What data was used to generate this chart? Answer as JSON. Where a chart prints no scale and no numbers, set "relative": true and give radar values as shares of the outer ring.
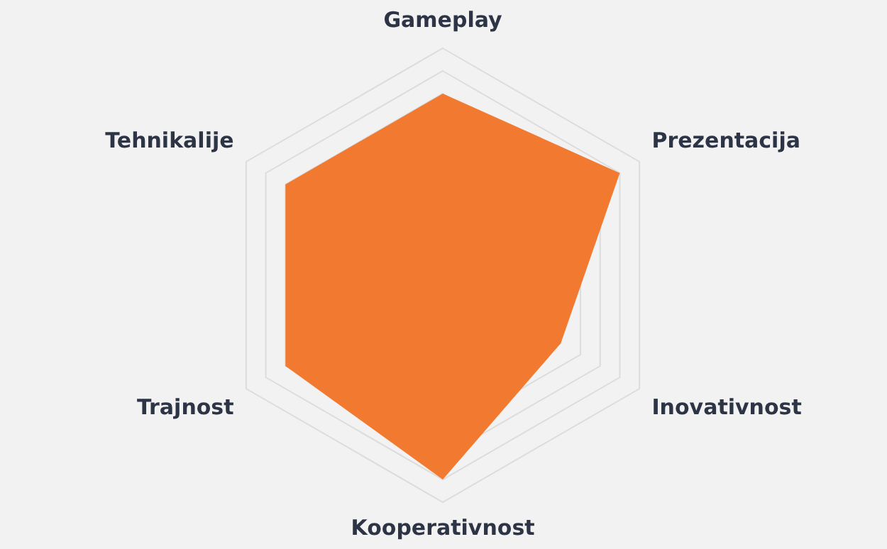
{
  "chart_data": {
    "type": "radar",
    "relative": true,
    "grid": true,
    "legend": false,
    "categories": [
      "Gameplay",
      "Prezentacija",
      "Inovativnost",
      "Kooperativnost",
      "Trajnost",
      "Tehnikalije"
    ],
    "series": [
      {
        "color": "#f27a30",
        "values": [
          0.8,
          0.9,
          0.6,
          0.9,
          0.8,
          0.8
        ]
      }
    ]
  }
}
